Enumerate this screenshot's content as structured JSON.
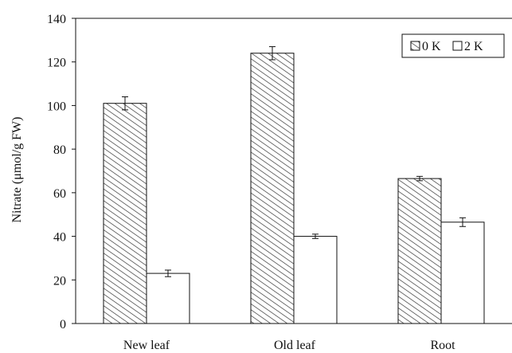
{
  "chart_data": {
    "type": "bar",
    "categories": [
      "New leaf",
      "Old leaf",
      "Root"
    ],
    "series": [
      {
        "name": "0 K",
        "values": [
          101,
          124,
          66.5
        ],
        "errors": [
          3,
          3,
          1
        ],
        "fill": "hatched"
      },
      {
        "name": "2 K",
        "values": [
          23,
          40,
          46.5
        ],
        "errors": [
          1.5,
          1,
          2
        ],
        "fill": "white"
      }
    ],
    "title": "",
    "xlabel": "",
    "ylabel": "Nitrate (μmol/g FW)",
    "ylim": [
      0,
      140
    ],
    "yticks": [
      0,
      20,
      40,
      60,
      80,
      100,
      120,
      140
    ],
    "grid": false,
    "legend_position": "top-right",
    "colors": {
      "stroke": "#111111",
      "hatch": "#333333",
      "empty": "#ffffff"
    }
  }
}
